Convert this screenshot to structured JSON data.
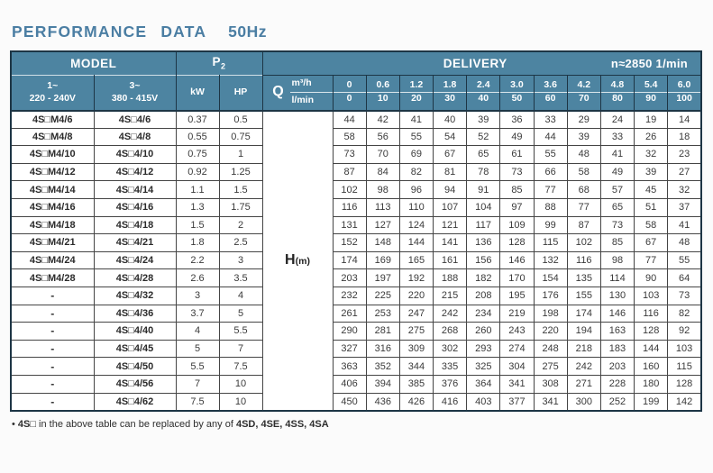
{
  "title": {
    "main": "PERFORMANCE DATA",
    "freq": "50Hz"
  },
  "table": {
    "header": {
      "model": "MODEL",
      "p2_base": "P",
      "p2_sub": "2",
      "delivery": "DELIVERY",
      "speed": "n≈2850 1/min",
      "phase1": "1~",
      "volt1": "220 - 240V",
      "phase3": "3~",
      "volt3": "380 - 415V",
      "kw": "kW",
      "hp": "HP",
      "q": "Q",
      "m3h": "m³/h",
      "lmin": "l/min",
      "flow_m3h": [
        "0",
        "0.6",
        "1.2",
        "1.8",
        "2.4",
        "3.0",
        "3.6",
        "4.2",
        "4.8",
        "5.4",
        "6.0"
      ],
      "flow_lmin": [
        "0",
        "10",
        "20",
        "30",
        "40",
        "50",
        "60",
        "70",
        "80",
        "90",
        "100"
      ]
    },
    "h_label": "H",
    "h_unit": "(m)",
    "rows": [
      {
        "m1": "4S□M4/6",
        "m3": "4S□4/6",
        "kw": "0.37",
        "hp": "0.5",
        "h": [
          "44",
          "42",
          "41",
          "40",
          "39",
          "36",
          "33",
          "29",
          "24",
          "19",
          "14"
        ]
      },
      {
        "m1": "4S□M4/8",
        "m3": "4S□4/8",
        "kw": "0.55",
        "hp": "0.75",
        "h": [
          "58",
          "56",
          "55",
          "54",
          "52",
          "49",
          "44",
          "39",
          "33",
          "26",
          "18"
        ]
      },
      {
        "m1": "4S□M4/10",
        "m3": "4S□4/10",
        "kw": "0.75",
        "hp": "1",
        "h": [
          "73",
          "70",
          "69",
          "67",
          "65",
          "61",
          "55",
          "48",
          "41",
          "32",
          "23"
        ]
      },
      {
        "m1": "4S□M4/12",
        "m3": "4S□4/12",
        "kw": "0.92",
        "hp": "1.25",
        "h": [
          "87",
          "84",
          "82",
          "81",
          "78",
          "73",
          "66",
          "58",
          "49",
          "39",
          "27"
        ]
      },
      {
        "m1": "4S□M4/14",
        "m3": "4S□4/14",
        "kw": "1.1",
        "hp": "1.5",
        "h": [
          "102",
          "98",
          "96",
          "94",
          "91",
          "85",
          "77",
          "68",
          "57",
          "45",
          "32"
        ]
      },
      {
        "m1": "4S□M4/16",
        "m3": "4S□4/16",
        "kw": "1.3",
        "hp": "1.75",
        "h": [
          "116",
          "113",
          "110",
          "107",
          "104",
          "97",
          "88",
          "77",
          "65",
          "51",
          "37"
        ]
      },
      {
        "m1": "4S□M4/18",
        "m3": "4S□4/18",
        "kw": "1.5",
        "hp": "2",
        "h": [
          "131",
          "127",
          "124",
          "121",
          "117",
          "109",
          "99",
          "87",
          "73",
          "58",
          "41"
        ]
      },
      {
        "m1": "4S□M4/21",
        "m3": "4S□4/21",
        "kw": "1.8",
        "hp": "2.5",
        "h": [
          "152",
          "148",
          "144",
          "141",
          "136",
          "128",
          "115",
          "102",
          "85",
          "67",
          "48"
        ]
      },
      {
        "m1": "4S□M4/24",
        "m3": "4S□4/24",
        "kw": "2.2",
        "hp": "3",
        "h": [
          "174",
          "169",
          "165",
          "161",
          "156",
          "146",
          "132",
          "116",
          "98",
          "77",
          "55"
        ]
      },
      {
        "m1": "4S□M4/28",
        "m3": "4S□4/28",
        "kw": "2.6",
        "hp": "3.5",
        "h": [
          "203",
          "197",
          "192",
          "188",
          "182",
          "170",
          "154",
          "135",
          "114",
          "90",
          "64"
        ]
      },
      {
        "m1": "-",
        "m3": "4S□4/32",
        "kw": "3",
        "hp": "4",
        "h": [
          "232",
          "225",
          "220",
          "215",
          "208",
          "195",
          "176",
          "155",
          "130",
          "103",
          "73"
        ]
      },
      {
        "m1": "-",
        "m3": "4S□4/36",
        "kw": "3.7",
        "hp": "5",
        "h": [
          "261",
          "253",
          "247",
          "242",
          "234",
          "219",
          "198",
          "174",
          "146",
          "116",
          "82"
        ]
      },
      {
        "m1": "-",
        "m3": "4S□4/40",
        "kw": "4",
        "hp": "5.5",
        "h": [
          "290",
          "281",
          "275",
          "268",
          "260",
          "243",
          "220",
          "194",
          "163",
          "128",
          "92"
        ]
      },
      {
        "m1": "-",
        "m3": "4S□4/45",
        "kw": "5",
        "hp": "7",
        "h": [
          "327",
          "316",
          "309",
          "302",
          "293",
          "274",
          "248",
          "218",
          "183",
          "144",
          "103"
        ]
      },
      {
        "m1": "-",
        "m3": "4S□4/50",
        "kw": "5.5",
        "hp": "7.5",
        "h": [
          "363",
          "352",
          "344",
          "335",
          "325",
          "304",
          "275",
          "242",
          "203",
          "160",
          "115"
        ]
      },
      {
        "m1": "-",
        "m3": "4S□4/56",
        "kw": "7",
        "hp": "10",
        "h": [
          "406",
          "394",
          "385",
          "376",
          "364",
          "341",
          "308",
          "271",
          "228",
          "180",
          "128"
        ]
      },
      {
        "m1": "-",
        "m3": "4S□4/62",
        "kw": "7.5",
        "hp": "10",
        "h": [
          "450",
          "436",
          "426",
          "416",
          "403",
          "377",
          "341",
          "300",
          "252",
          "199",
          "142"
        ]
      }
    ]
  },
  "footnote": {
    "bullet": "•",
    "prefix": "4S□",
    "middle": " in the above table can be replaced by any of ",
    "models": "4SD, 4SE, 4SS, 4SA"
  },
  "colors": {
    "header_teal": "#4d84a1",
    "dark_border": "#1d3545",
    "title_blue": "#4b7ea3"
  }
}
